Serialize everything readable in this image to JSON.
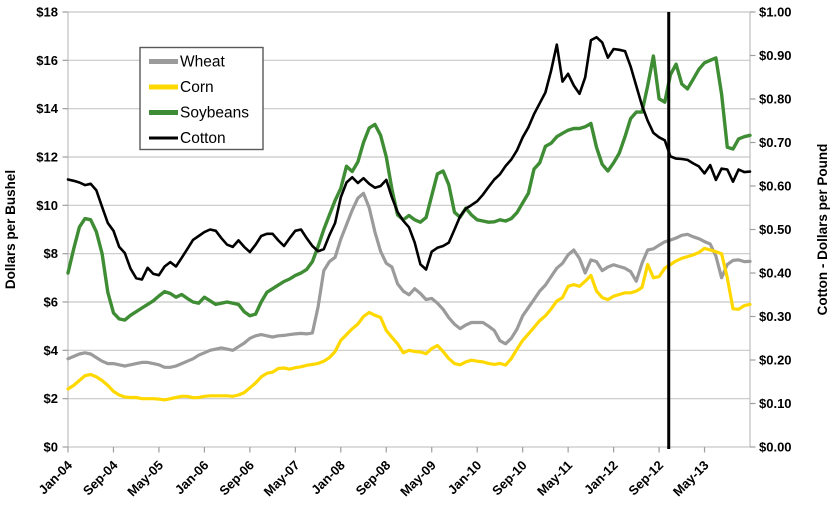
{
  "page": {
    "background": "#FFFFFF"
  },
  "colors": {
    "gridline": "#C8C8C8",
    "axis_line": "#BDBDBD",
    "tick": "#9E9E9E",
    "legend_border": "#595959",
    "marker": "#000000"
  },
  "chart_data": {
    "type": "line",
    "title": "",
    "x_axis": {
      "interval": "monthly",
      "start_label": "Jan-04",
      "months_count": 121,
      "tick_labels": [
        "Jan-04",
        "Sep-04",
        "May-05",
        "Jan-06",
        "Sep-06",
        "May-07",
        "Jan-08",
        "Sep-08",
        "May-09",
        "Jan-10",
        "Sep-10",
        "May-11",
        "Jan-12",
        "Sep-12",
        "May-13"
      ],
      "tick_month_indices": [
        0,
        8,
        16,
        24,
        32,
        40,
        48,
        56,
        64,
        72,
        80,
        88,
        96,
        104,
        112
      ]
    },
    "y_left": {
      "title": "Dollars per Bushel",
      "min": 0,
      "max": 18,
      "tick_step": 2,
      "tick_values": [
        0,
        2,
        4,
        6,
        8,
        10,
        12,
        14,
        16,
        18
      ],
      "tick_labels": [
        "$0",
        "$2",
        "$4",
        "$6",
        "$8",
        "$10",
        "$12",
        "$14",
        "$16",
        "$18"
      ]
    },
    "y_right": {
      "title": "Cotton - Dollars per Pound",
      "min": 0,
      "max": 1,
      "tick_step": 0.1,
      "tick_values": [
        0,
        0.1,
        0.2,
        0.3,
        0.4,
        0.5,
        0.6,
        0.7,
        0.8,
        0.9,
        1.0
      ],
      "tick_labels": [
        "$0.00",
        "$0.10",
        "$0.20",
        "$0.30",
        "$0.40",
        "$0.50",
        "$0.60",
        "$0.70",
        "$0.80",
        "$0.90",
        "$1.00"
      ]
    },
    "marker_line": {
      "month_index": 105.7,
      "color": "#000000",
      "width": 3
    },
    "legend": {
      "position": "top-left",
      "labels": [
        "Wheat",
        "Corn",
        "Soybeans",
        "Cotton"
      ]
    },
    "series": [
      {
        "name": "Wheat",
        "color": "#9B9B9B",
        "width": 3.2,
        "axis": "left",
        "values": [
          3.65,
          3.75,
          3.85,
          3.9,
          3.85,
          3.7,
          3.55,
          3.45,
          3.45,
          3.4,
          3.35,
          3.4,
          3.45,
          3.5,
          3.5,
          3.45,
          3.4,
          3.3,
          3.3,
          3.35,
          3.45,
          3.55,
          3.65,
          3.8,
          3.9,
          4.0,
          4.05,
          4.1,
          4.05,
          4.0,
          4.15,
          4.3,
          4.5,
          4.6,
          4.65,
          4.6,
          4.55,
          4.6,
          4.62,
          4.65,
          4.68,
          4.7,
          4.68,
          4.72,
          5.8,
          7.3,
          7.67,
          7.85,
          8.6,
          9.2,
          9.8,
          10.3,
          10.5,
          9.9,
          8.9,
          8.1,
          7.6,
          7.45,
          6.75,
          6.45,
          6.3,
          6.55,
          6.35,
          6.1,
          6.15,
          5.95,
          5.7,
          5.35,
          5.08,
          4.9,
          5.05,
          5.15,
          5.15,
          5.15,
          5.0,
          4.82,
          4.4,
          4.27,
          4.5,
          4.88,
          5.43,
          5.77,
          6.1,
          6.45,
          6.7,
          7.05,
          7.4,
          7.6,
          7.95,
          8.15,
          7.8,
          7.2,
          7.74,
          7.67,
          7.3,
          7.45,
          7.54,
          7.47,
          7.4,
          7.26,
          6.86,
          7.6,
          8.15,
          8.2,
          8.35,
          8.49,
          8.56,
          8.65,
          8.76,
          8.8,
          8.7,
          8.62,
          8.5,
          8.4,
          7.9,
          7.0,
          7.55,
          7.72,
          7.74,
          7.67,
          7.68
        ]
      },
      {
        "name": "Corn",
        "color": "#FFD800",
        "width": 3.2,
        "axis": "left",
        "values": [
          2.4,
          2.55,
          2.75,
          2.95,
          3.0,
          2.9,
          2.75,
          2.55,
          2.3,
          2.15,
          2.07,
          2.05,
          2.05,
          2.0,
          2.0,
          2.0,
          1.98,
          1.95,
          2.0,
          2.05,
          2.1,
          2.1,
          2.04,
          2.05,
          2.1,
          2.12,
          2.12,
          2.12,
          2.12,
          2.1,
          2.15,
          2.25,
          2.45,
          2.65,
          2.9,
          3.05,
          3.1,
          3.25,
          3.27,
          3.22,
          3.28,
          3.32,
          3.38,
          3.42,
          3.46,
          3.55,
          3.7,
          3.95,
          4.41,
          4.65,
          4.89,
          5.09,
          5.4,
          5.57,
          5.45,
          5.36,
          4.82,
          4.54,
          4.27,
          3.9,
          4.0,
          3.95,
          3.93,
          3.86,
          4.07,
          4.2,
          3.95,
          3.66,
          3.45,
          3.4,
          3.52,
          3.59,
          3.55,
          3.52,
          3.46,
          3.42,
          3.46,
          3.39,
          3.66,
          4.05,
          4.41,
          4.68,
          4.95,
          5.23,
          5.43,
          5.71,
          6.04,
          6.18,
          6.65,
          6.72,
          6.65,
          6.86,
          7.1,
          6.45,
          6.18,
          6.1,
          6.24,
          6.31,
          6.38,
          6.38,
          6.45,
          6.6,
          7.55,
          7.0,
          7.05,
          7.4,
          7.55,
          7.7,
          7.81,
          7.88,
          7.95,
          8.05,
          8.22,
          8.15,
          8.08,
          8.0,
          7.0,
          5.72,
          5.7,
          5.85,
          5.9
        ]
      },
      {
        "name": "Soybeans",
        "color": "#3E8C33",
        "width": 3.4,
        "axis": "left",
        "values": [
          7.2,
          8.2,
          9.1,
          9.45,
          9.4,
          8.9,
          8.0,
          6.4,
          5.55,
          5.3,
          5.25,
          5.45,
          5.6,
          5.75,
          5.9,
          6.05,
          6.25,
          6.43,
          6.35,
          6.2,
          6.31,
          6.15,
          6.0,
          5.95,
          6.2,
          6.05,
          5.9,
          5.95,
          6.0,
          5.95,
          5.9,
          5.6,
          5.43,
          5.5,
          6.0,
          6.4,
          6.55,
          6.7,
          6.85,
          6.95,
          7.1,
          7.2,
          7.35,
          7.67,
          8.3,
          9.0,
          9.6,
          10.2,
          10.7,
          11.62,
          11.4,
          11.8,
          12.6,
          13.2,
          13.35,
          12.9,
          12.0,
          10.67,
          9.6,
          9.4,
          9.58,
          9.4,
          9.3,
          9.5,
          10.4,
          11.3,
          11.42,
          10.85,
          9.71,
          9.51,
          9.88,
          9.6,
          9.4,
          9.35,
          9.3,
          9.32,
          9.4,
          9.35,
          9.45,
          9.7,
          10.1,
          10.5,
          11.5,
          11.76,
          12.44,
          12.57,
          12.84,
          12.98,
          13.11,
          13.18,
          13.18,
          13.25,
          13.39,
          12.4,
          11.7,
          11.42,
          11.76,
          12.16,
          12.84,
          13.59,
          13.86,
          13.86,
          14.95,
          16.18,
          14.41,
          14.27,
          15.4,
          15.84,
          15.02,
          14.82,
          15.22,
          15.63,
          15.9,
          16.0,
          16.1,
          14.6,
          12.4,
          12.33,
          12.75,
          12.84,
          12.9
        ]
      },
      {
        "name": "Cotton",
        "color": "#000000",
        "width": 2.6,
        "axis": "right",
        "values": [
          0.615,
          0.612,
          0.608,
          0.602,
          0.605,
          0.59,
          0.552,
          0.515,
          0.497,
          0.46,
          0.446,
          0.41,
          0.388,
          0.385,
          0.412,
          0.398,
          0.395,
          0.415,
          0.425,
          0.415,
          0.435,
          0.455,
          0.476,
          0.485,
          0.494,
          0.5,
          0.497,
          0.48,
          0.465,
          0.46,
          0.475,
          0.46,
          0.448,
          0.465,
          0.485,
          0.49,
          0.49,
          0.475,
          0.462,
          0.48,
          0.497,
          0.5,
          0.48,
          0.462,
          0.45,
          0.455,
          0.487,
          0.515,
          0.574,
          0.608,
          0.62,
          0.607,
          0.618,
          0.605,
          0.596,
          0.6,
          0.614,
          0.574,
          0.54,
          0.52,
          0.505,
          0.47,
          0.42,
          0.408,
          0.449,
          0.458,
          0.462,
          0.47,
          0.5,
          0.53,
          0.548,
          0.556,
          0.565,
          0.58,
          0.598,
          0.615,
          0.627,
          0.646,
          0.661,
          0.682,
          0.712,
          0.735,
          0.765,
          0.79,
          0.815,
          0.865,
          0.925,
          0.84,
          0.858,
          0.831,
          0.812,
          0.85,
          0.935,
          0.942,
          0.93,
          0.895,
          0.915,
          0.913,
          0.91,
          0.875,
          0.83,
          0.785,
          0.75,
          0.722,
          0.712,
          0.705,
          0.668,
          0.663,
          0.662,
          0.66,
          0.652,
          0.645,
          0.629,
          0.648,
          0.614,
          0.64,
          0.638,
          0.61,
          0.638,
          0.632,
          0.633
        ]
      }
    ]
  }
}
